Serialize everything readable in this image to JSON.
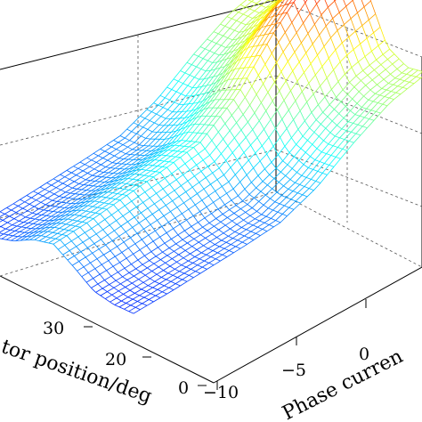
{
  "chart_data": {
    "type": "surface",
    "title": "",
    "xlabel": "Phase curren",
    "ylabel": "tor position/deg",
    "zlabel": "",
    "x_ticks": [
      "−10",
      "−5",
      "0"
    ],
    "y_ticks": [
      "0",
      "20",
      "30"
    ],
    "xlim": [
      -10,
      10
    ],
    "ylim": [
      0,
      40
    ],
    "grid": true,
    "colormap": "jet",
    "surface_profile_x": [
      -10,
      -7.5,
      -5,
      -2.5,
      0,
      2.5,
      5,
      7.5,
      10
    ],
    "surface_profile_relative_height": [
      0.3,
      0.32,
      0.35,
      0.38,
      0.42,
      0.55,
      0.75,
      0.92,
      1.0
    ],
    "surface_profile_y": [
      0,
      5,
      10,
      15,
      20,
      25,
      30,
      35,
      40
    ],
    "surface_modulation_y": [
      0.05,
      0.0,
      0.1,
      0.55,
      0.95,
      0.75,
      0.35,
      0.12,
      0.1
    ]
  }
}
